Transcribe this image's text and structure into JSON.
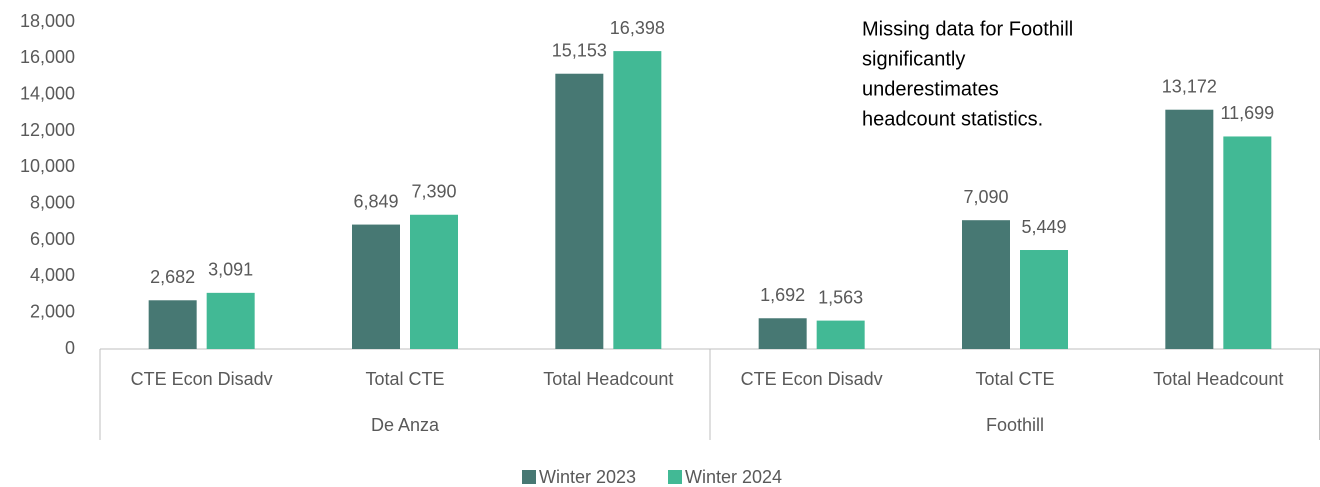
{
  "chart_data": {
    "type": "bar",
    "categories": [
      "CTE Econ Disadv",
      "Total CTE",
      "Total Headcount",
      "CTE Econ Disadv",
      "Total CTE",
      "Total Headcount"
    ],
    "groups": [
      "De Anza",
      "Foothill"
    ],
    "series": [
      {
        "name": "Winter 2023",
        "color": "#477873",
        "values": [
          2682,
          6849,
          15153,
          1692,
          7090,
          13172
        ],
        "value_labels": [
          "2,682",
          "6,849",
          "15,153",
          "1,692",
          "7,090",
          "13,172"
        ]
      },
      {
        "name": "Winter 2024",
        "color": "#42b995",
        "values": [
          3091,
          7390,
          16398,
          1563,
          5449,
          11699
        ],
        "value_labels": [
          "3,091",
          "7,390",
          "16,398",
          "1,563",
          "5,449",
          "11,699"
        ]
      }
    ],
    "ylim": [
      0,
      18000
    ],
    "yticks": [
      0,
      {
        "value": 2000,
        "label": "2,000"
      },
      {
        "value": 4000,
        "label": "4,000"
      },
      {
        "value": 6000,
        "label": "6,000"
      },
      {
        "value": 8000,
        "label": "8,000"
      },
      {
        "value": 10000,
        "label": "10,000"
      },
      {
        "value": 12000,
        "label": "12,000"
      },
      {
        "value": 14000,
        "label": "14,000"
      },
      {
        "value": 16000,
        "label": "16,000"
      },
      {
        "value": 18000,
        "label": "18,000"
      }
    ],
    "grid": false,
    "legend": "bottom",
    "annotation": [
      "Missing data for Foothill",
      "significantly",
      "underestimates",
      "headcount statistics."
    ]
  }
}
